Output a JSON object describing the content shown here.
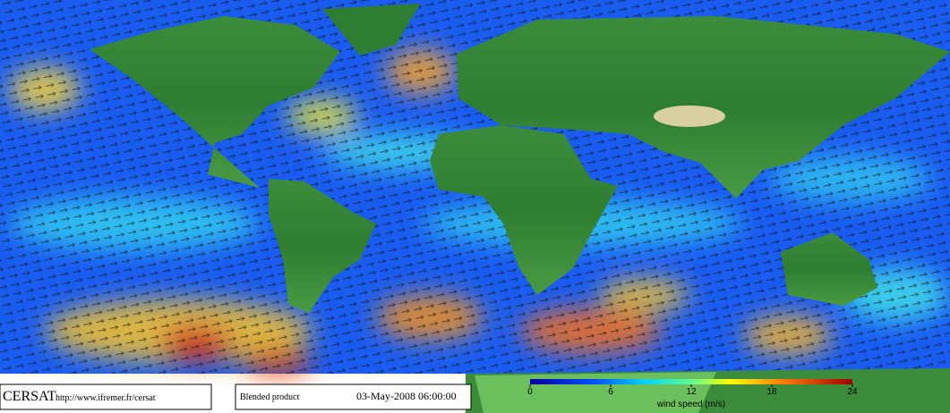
{
  "footer": {
    "logo": "CERSAT",
    "url": "http://www.ifremer.fr/cersat",
    "product": "Blended product",
    "datetime": "03-May-2008 06:00:00"
  },
  "colorbar": {
    "label": "wind speed (m/s)",
    "lim": [
      0,
      24
    ],
    "ticks": [
      0,
      6,
      12,
      18,
      24
    ]
  }
}
